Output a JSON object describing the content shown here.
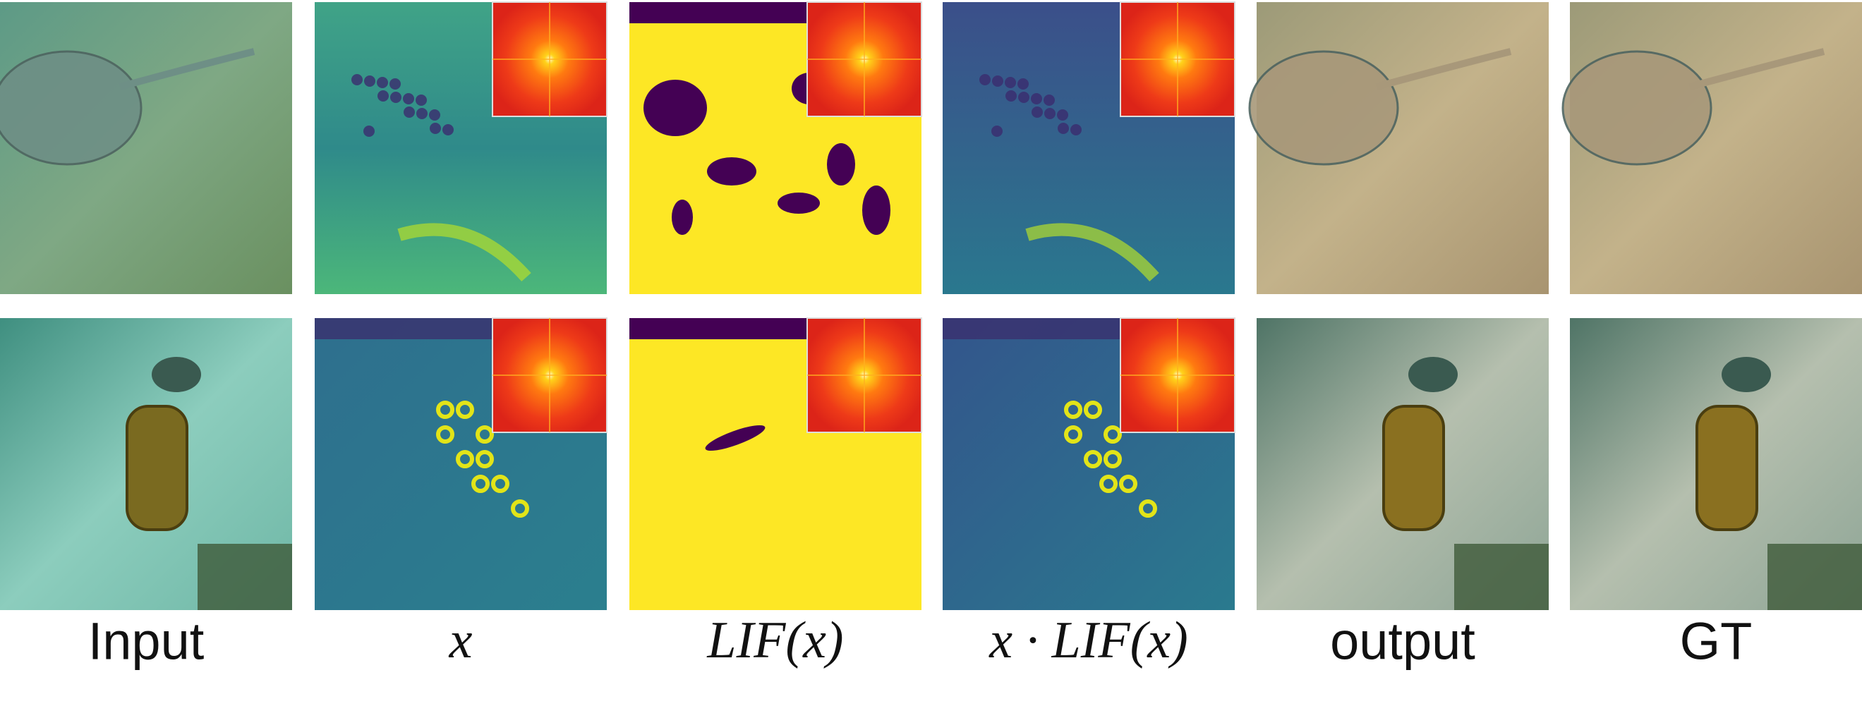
{
  "figure": {
    "labels": [
      "Input",
      "x",
      "LIF(x)",
      "x · LIF(x)",
      "output",
      "GT"
    ]
  }
}
